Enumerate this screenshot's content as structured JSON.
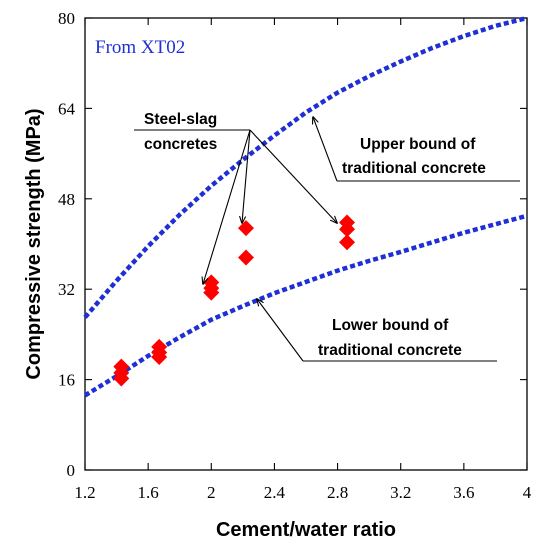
{
  "chart_data": {
    "type": "scatter",
    "source_label": "From XT02",
    "xlabel": "Cement/water ratio",
    "ylabel": "Compressive strength (MPa)",
    "xlim": [
      1.2,
      4.0
    ],
    "ylim": [
      0,
      80
    ],
    "xticks": [
      "1.2",
      "1.6",
      "2",
      "2.4",
      "2.8",
      "3.2",
      "3.6",
      "4"
    ],
    "yticks": [
      "0",
      "16",
      "32",
      "48",
      "64",
      "80"
    ],
    "colors": {
      "curves": "#1f2fd8",
      "points": "#ff0000"
    },
    "series": [
      {
        "name": "Upper bound of traditional concrete",
        "style": "dashed",
        "x": [
          1.2,
          1.4,
          1.6,
          1.8,
          2.0,
          2.2,
          2.4,
          2.6,
          2.8,
          3.0,
          3.2,
          3.4,
          3.6,
          3.8,
          4.0
        ],
        "y": [
          27.0,
          33.5,
          39.6,
          45.2,
          50.3,
          54.9,
          59.2,
          63.3,
          66.8,
          69.7,
          72.3,
          74.7,
          76.8,
          78.6,
          80.0
        ]
      },
      {
        "name": "Lower bound of traditional concrete",
        "style": "dashed",
        "x": [
          1.2,
          1.4,
          1.6,
          1.8,
          2.0,
          2.2,
          2.4,
          2.6,
          2.8,
          3.0,
          3.2,
          3.4,
          3.6,
          3.8,
          4.0
        ],
        "y": [
          13.2,
          16.6,
          20.2,
          23.5,
          26.6,
          29.0,
          31.3,
          33.3,
          35.3,
          37.0,
          38.6,
          40.3,
          42.0,
          43.5,
          45.0
        ]
      },
      {
        "name": "Steel-slag concretes",
        "style": "diamond",
        "x": [
          1.43,
          1.43,
          1.43,
          1.67,
          1.67,
          1.67,
          2.0,
          2.0,
          2.0,
          2.22,
          2.22,
          2.86,
          2.86,
          2.86
        ],
        "y": [
          18.3,
          17.2,
          16.2,
          21.8,
          20.8,
          20.0,
          33.2,
          32.2,
          31.4,
          42.8,
          37.6,
          43.8,
          42.6,
          40.3
        ]
      }
    ],
    "annotations": {
      "steel_slag": [
        "Steel-slag",
        "concretes"
      ],
      "upper": [
        "Upper bound of",
        "traditional concrete"
      ],
      "lower": [
        "Lower bound of",
        "traditional concrete"
      ]
    }
  }
}
